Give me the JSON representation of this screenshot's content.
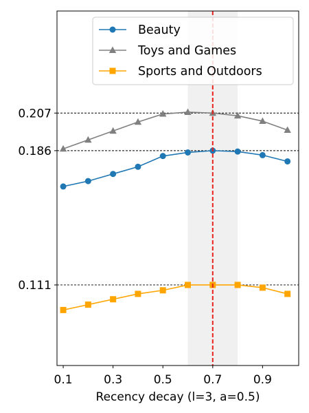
{
  "chart_data": {
    "type": "line",
    "xlabel": "Recency decay (l=3, a=0.5)",
    "ylabel": "",
    "x": [
      0.1,
      0.2,
      0.3,
      0.4,
      0.5,
      0.6,
      0.7,
      0.8,
      0.9,
      1.0
    ],
    "xlim": [
      0.075,
      1.045
    ],
    "ylim": [
      0.066,
      0.264
    ],
    "xticks": [
      0.1,
      0.3,
      0.5,
      0.7,
      0.9
    ],
    "xtick_labels": [
      "0.1",
      "0.3",
      "0.5",
      "0.7",
      "0.9"
    ],
    "yticks": [
      0.111,
      0.186,
      0.207
    ],
    "ytick_labels": [
      "0.111",
      "0.186",
      "0.207"
    ],
    "grid": false,
    "reference_lines": {
      "horizontal": [
        0.111,
        0.186,
        0.207
      ],
      "vertical_dashed_x": 0.7,
      "shaded_x_range": [
        0.6,
        0.8
      ]
    },
    "legend_position": "top-right",
    "series": [
      {
        "name": "Beauty",
        "marker": "circle",
        "color": "#1f77b4",
        "values": [
          0.166,
          0.169,
          0.173,
          0.177,
          0.183,
          0.185,
          0.186,
          0.1855,
          0.1835,
          0.18
        ]
      },
      {
        "name": "Toys and Games",
        "marker": "triangle",
        "color": "#808080",
        "values": [
          0.187,
          0.192,
          0.197,
          0.202,
          0.2065,
          0.2075,
          0.207,
          0.2055,
          0.2025,
          0.1975
        ]
      },
      {
        "name": "Sports and Outdoors",
        "marker": "square",
        "color": "#ffa500",
        "values": [
          0.097,
          0.1,
          0.103,
          0.106,
          0.108,
          0.111,
          0.111,
          0.111,
          0.1095,
          0.106
        ]
      }
    ]
  }
}
